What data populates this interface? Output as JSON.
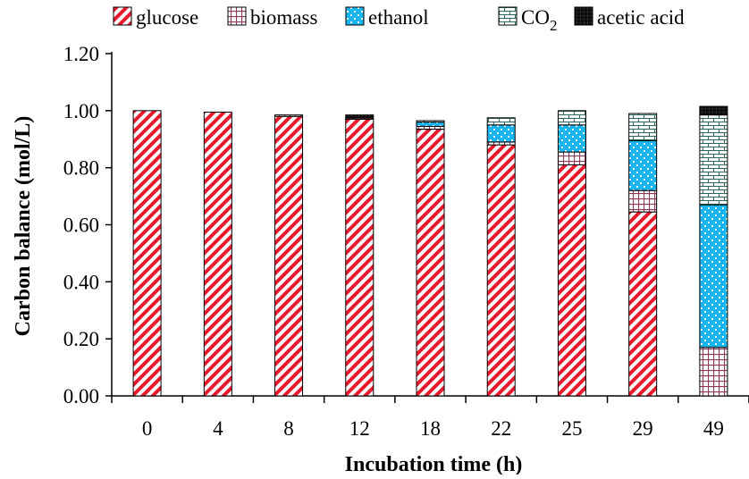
{
  "chart_data": {
    "type": "bar",
    "stacked": true,
    "categories": [
      "0",
      "4",
      "8",
      "12",
      "18",
      "22",
      "25",
      "29",
      "49"
    ],
    "series": [
      {
        "name": "glucose",
        "key": "glucose",
        "color": "#e8192c",
        "pattern": "diagonal-stripes",
        "values": [
          1.0,
          0.995,
          0.98,
          0.97,
          0.935,
          0.88,
          0.81,
          0.645,
          0.0
        ]
      },
      {
        "name": "biomass",
        "key": "biomass",
        "color": "#8b3a5a",
        "pattern": "grid",
        "values": [
          0.0,
          0.0,
          0.005,
          0.005,
          0.01,
          0.01,
          0.045,
          0.075,
          0.17
        ]
      },
      {
        "name": "ethanol",
        "key": "ethanol",
        "color": "#19b5f0",
        "pattern": "checker",
        "values": [
          0.0,
          0.0,
          0.0,
          0.0,
          0.015,
          0.06,
          0.095,
          0.175,
          0.5
        ]
      },
      {
        "name": "CO2",
        "key": "co2",
        "color": "#2e6b5e",
        "pattern": "brick",
        "values": [
          0.0,
          0.0,
          0.0,
          0.0,
          0.005,
          0.025,
          0.05,
          0.095,
          0.315
        ]
      },
      {
        "name": "acetic acid",
        "key": "acetic",
        "color": "#111111",
        "pattern": "solid",
        "values": [
          0.0,
          0.0,
          0.0,
          0.01,
          0.0,
          0.0,
          0.0,
          0.0,
          0.03
        ]
      }
    ],
    "legend": [
      {
        "key": "glucose",
        "label": "glucose"
      },
      {
        "key": "biomass",
        "label": "biomass"
      },
      {
        "key": "ethanol",
        "label": "ethanol"
      },
      {
        "key": "co2",
        "label": "CO",
        "sub": "2"
      },
      {
        "key": "acetic",
        "label": "acetic acid"
      }
    ],
    "yticks": [
      "0.00",
      "0.20",
      "0.40",
      "0.60",
      "0.80",
      "1.00",
      "1.20"
    ],
    "ylim": [
      0,
      1.2
    ],
    "xlabel": "Incubation time (h)",
    "ylabel": "Carbon balance (mol/L)",
    "legend_position": "top",
    "grid": false
  }
}
